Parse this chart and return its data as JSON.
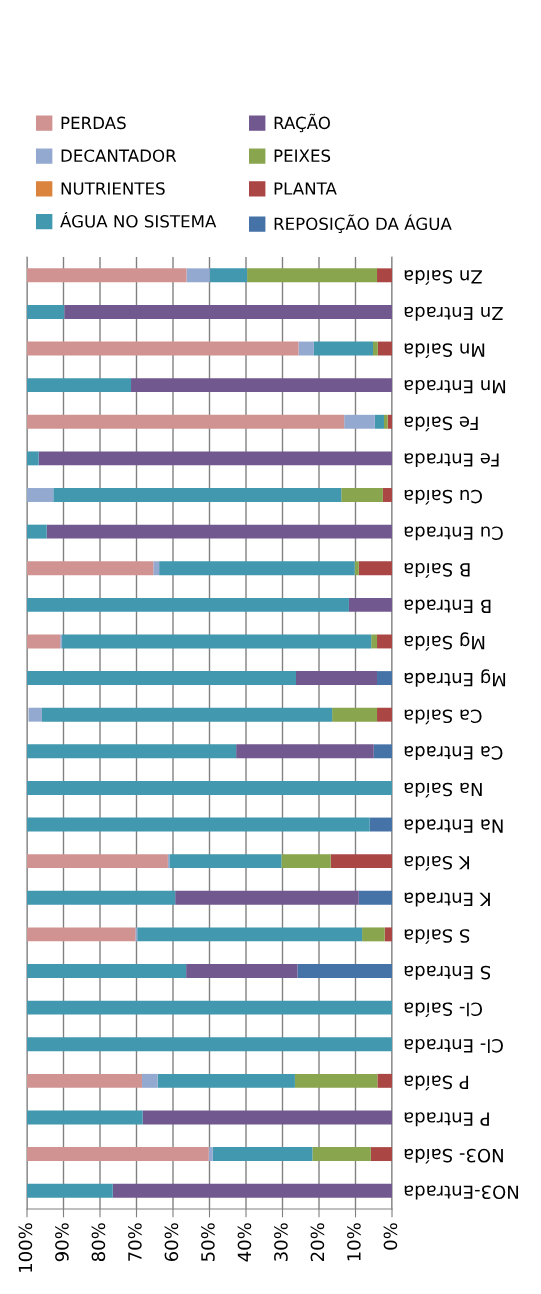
{
  "chart_data": {
    "type": "bar",
    "orientation": "horizontal",
    "stacked": true,
    "legend": "top",
    "grid": "x",
    "categories": [
      "Zn Saída",
      "Zn Entrada",
      "Mn Saída",
      "Mn Entrada",
      "Fe Saída",
      "Fe Entrada",
      "Cu Saída",
      "Cu Entrada",
      "B Saída",
      "B Entrada",
      "Mg Saída",
      "Mg Entrada",
      "Ca Saída",
      "Ca Entrada",
      "Na Saída",
      "Na Entrada",
      "K Saída",
      "K Entrada",
      "S Saída",
      "S Entrada",
      "Cl- Saída",
      "Cl- Entrada",
      "P Saída",
      "P Entrada",
      "NO3- Saída",
      "NO3-Entrada"
    ],
    "xlim": [
      100,
      0
    ],
    "xticks": [
      {
        "value": 100,
        "label": "100%"
      },
      {
        "value": 90,
        "label": "90%"
      },
      {
        "value": 80,
        "label": "80%"
      },
      {
        "value": 70,
        "label": "70%"
      },
      {
        "value": 60,
        "label": "60%"
      },
      {
        "value": 50,
        "label": "50%"
      },
      {
        "value": 40,
        "label": "40%"
      },
      {
        "value": 30,
        "label": "30%"
      },
      {
        "value": 20,
        "label": "20%"
      },
      {
        "value": 10,
        "label": "10%"
      },
      {
        "value": 0,
        "label": "0%"
      }
    ],
    "series": [
      {
        "name": "REPOSIÇÃO DA ÁGUA",
        "color": "#4572a7",
        "values": [
          0,
          0,
          0,
          0,
          0,
          0,
          0,
          0,
          0,
          0,
          0,
          4.1,
          0,
          5.0,
          0,
          6.1,
          0,
          9.1,
          0,
          25.9,
          0,
          0,
          0,
          0,
          0,
          0
        ]
      },
      {
        "name": "PLANTA",
        "color": "#aa4643",
        "values": [
          4.1,
          0,
          3.9,
          0,
          1.2,
          0,
          2.5,
          0,
          9.1,
          0,
          4.1,
          0,
          4.1,
          0,
          0,
          0,
          16.8,
          0,
          2.0,
          0,
          0,
          0,
          4.0,
          0,
          5.8,
          0
        ]
      },
      {
        "name": "PEIXES",
        "color": "#89a54e",
        "values": [
          35.6,
          0,
          1.3,
          0,
          1.0,
          0,
          11.4,
          0,
          1.1,
          0,
          1.6,
          0,
          12.3,
          0,
          0,
          0,
          13.5,
          0,
          6.2,
          0,
          0,
          0,
          22.6,
          0,
          16.0,
          0
        ]
      },
      {
        "name": "RAÇÃO",
        "color": "#71588f",
        "values": [
          0,
          89.8,
          0,
          71.5,
          0,
          96.8,
          0,
          94.6,
          0,
          11.8,
          0,
          22.2,
          0,
          37.7,
          0,
          0,
          0,
          50.3,
          0,
          30.5,
          0,
          0,
          0,
          68.3,
          0,
          76.5
        ]
      },
      {
        "name": "ÁGUA NO SISTEMA",
        "color": "#4198af",
        "values": [
          10.2,
          10.2,
          16.2,
          28.5,
          2.5,
          3.2,
          78.9,
          5.4,
          53.6,
          88.2,
          84.7,
          73.7,
          79.5,
          57.3,
          100,
          93.9,
          30.7,
          40.6,
          61.6,
          43.6,
          100,
          100,
          37.6,
          31.7,
          27.3,
          23.5
        ]
      },
      {
        "name": "NUTRIENTES",
        "color": "#db843d",
        "values": [
          0,
          0,
          0,
          0,
          0,
          0,
          0,
          0,
          0,
          0,
          0,
          0,
          0,
          0,
          0,
          0,
          0,
          0,
          0,
          0,
          0,
          0,
          0,
          0,
          0,
          0
        ]
      },
      {
        "name": "DECANTADOR",
        "color": "#93a9cf",
        "values": [
          6.4,
          0,
          4.2,
          0,
          8.4,
          0,
          7.2,
          0,
          1.6,
          0,
          0.5,
          0,
          3.7,
          0,
          0,
          0,
          0.4,
          0,
          0.5,
          0,
          0,
          0,
          4.3,
          0,
          1.1,
          0
        ]
      },
      {
        "name": "PERDAS",
        "color": "#d19392",
        "values": [
          43.7,
          0,
          74.4,
          0,
          86.9,
          0,
          0,
          0,
          34.6,
          0,
          9.1,
          0,
          0,
          0,
          0,
          0,
          38.6,
          0,
          29.7,
          0,
          0,
          0,
          31.5,
          0,
          49.8,
          0
        ]
      }
    ]
  }
}
